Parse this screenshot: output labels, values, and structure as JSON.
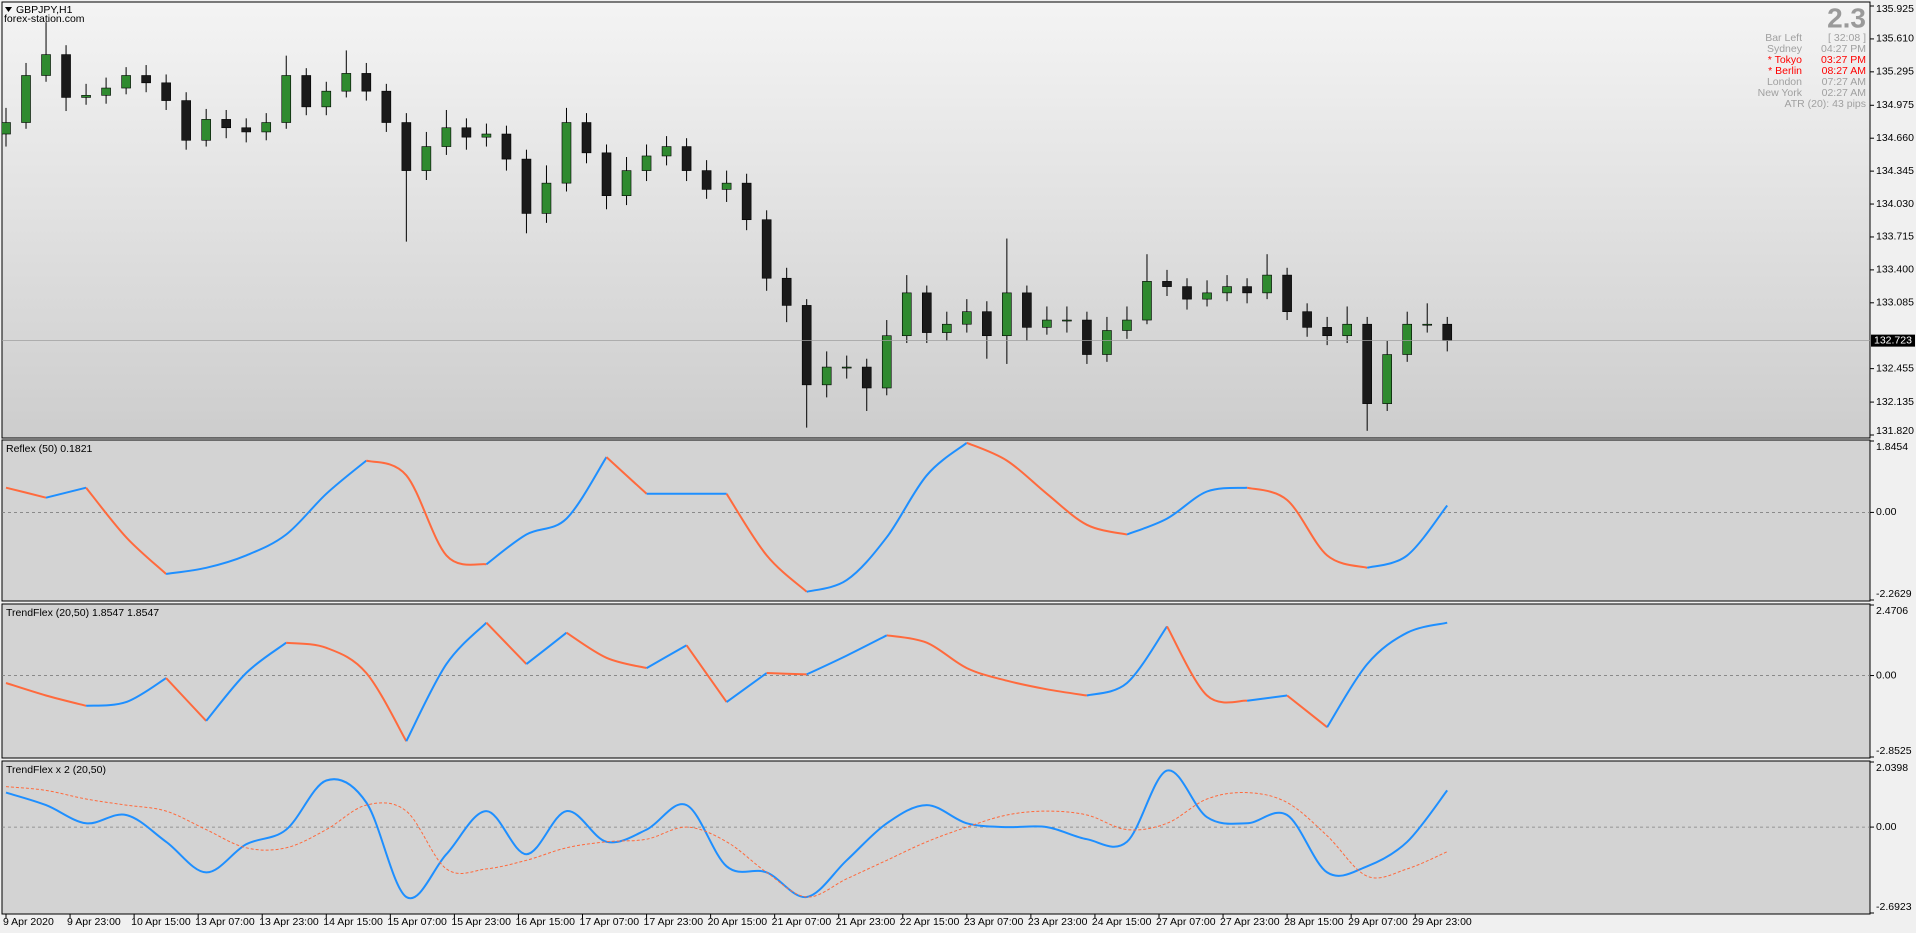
{
  "chart_data": [
    {
      "type": "candlestick",
      "title": "GBPJPY,H1",
      "subtitle": "forex-station.com",
      "x": [
        0,
        5,
        10,
        15,
        20,
        25,
        30,
        35,
        40,
        45,
        50,
        55,
        60,
        65,
        70,
        75,
        80,
        85,
        90,
        95,
        100,
        105,
        110,
        115,
        120,
        125,
        130,
        135,
        140,
        145,
        150,
        155,
        160,
        165,
        170,
        175,
        180,
        185,
        190,
        195,
        200,
        205,
        210,
        215,
        220,
        225,
        230,
        235,
        240,
        245,
        250,
        255,
        260,
        265,
        270,
        275,
        280,
        285,
        290,
        295,
        300,
        305,
        310,
        315,
        320,
        325,
        330,
        335,
        340,
        345,
        350,
        355,
        360
      ],
      "open": [
        134.7,
        134.81,
        135.26,
        135.46,
        135.05,
        135.07,
        135.14,
        135.26,
        135.19,
        135.02,
        134.64,
        134.84,
        134.76,
        134.72,
        134.81,
        135.26,
        134.96,
        135.11,
        135.28,
        135.11,
        134.81,
        134.35,
        134.58,
        134.76,
        134.67,
        134.7,
        134.46,
        133.94,
        134.23,
        134.81,
        134.52,
        134.11,
        134.35,
        134.49,
        134.58,
        134.35,
        134.17,
        134.23,
        133.88,
        133.32,
        133.06,
        132.3,
        132.47,
        132.47,
        132.27,
        132.77,
        133.18,
        132.8,
        132.88,
        133.0,
        132.77,
        133.18,
        132.85,
        132.92,
        132.92,
        132.59,
        132.82,
        132.92,
        133.29,
        133.24,
        133.12,
        133.18,
        133.24,
        133.18,
        133.35,
        133.0,
        132.85,
        132.77,
        132.88,
        132.12,
        132.59,
        132.88,
        132.88
      ],
      "high": [
        134.95,
        135.38,
        135.77,
        135.55,
        135.18,
        135.24,
        135.34,
        135.36,
        135.27,
        135.1,
        134.94,
        134.93,
        134.85,
        134.9,
        135.45,
        135.33,
        135.2,
        135.5,
        135.38,
        135.18,
        134.9,
        134.72,
        134.93,
        134.85,
        134.8,
        134.78,
        134.55,
        134.4,
        134.95,
        134.9,
        134.6,
        134.48,
        134.6,
        134.68,
        134.66,
        134.45,
        134.35,
        134.32,
        133.97,
        133.42,
        133.12,
        132.62,
        132.58,
        132.55,
        132.92,
        133.35,
        133.25,
        133.0,
        133.12,
        133.1,
        133.7,
        133.25,
        133.05,
        133.05,
        133.0,
        132.95,
        133.05,
        133.55,
        133.4,
        133.32,
        133.3,
        133.35,
        133.32,
        133.55,
        133.42,
        133.08,
        132.95,
        133.05,
        132.95,
        132.72,
        133.0,
        133.08,
        132.95
      ],
      "low": [
        134.58,
        134.75,
        135.2,
        134.92,
        134.98,
        134.99,
        135.08,
        135.1,
        134.93,
        134.55,
        134.58,
        134.66,
        134.62,
        134.64,
        134.75,
        134.88,
        134.88,
        135.05,
        135.02,
        134.72,
        133.67,
        134.26,
        134.5,
        134.55,
        134.58,
        134.35,
        133.75,
        133.85,
        134.15,
        134.42,
        133.98,
        134.02,
        134.25,
        134.4,
        134.25,
        134.08,
        134.05,
        133.78,
        133.2,
        132.9,
        131.89,
        132.18,
        132.36,
        132.05,
        132.2,
        132.7,
        132.7,
        132.72,
        132.8,
        132.55,
        132.5,
        132.72,
        132.78,
        132.8,
        132.5,
        132.52,
        132.74,
        132.88,
        133.15,
        133.02,
        133.05,
        133.1,
        133.08,
        133.12,
        132.92,
        132.76,
        132.68,
        132.7,
        131.86,
        132.05,
        132.52,
        132.8,
        132.62
      ],
      "close": [
        134.81,
        135.26,
        135.46,
        135.05,
        135.07,
        135.14,
        135.26,
        135.19,
        135.02,
        134.64,
        134.84,
        134.76,
        134.72,
        134.81,
        135.26,
        134.96,
        135.11,
        135.28,
        135.11,
        134.81,
        134.35,
        134.58,
        134.76,
        134.67,
        134.7,
        134.46,
        133.94,
        134.23,
        134.81,
        134.52,
        134.11,
        134.35,
        134.49,
        134.58,
        134.35,
        134.17,
        134.23,
        133.88,
        133.32,
        133.06,
        132.3,
        132.47,
        132.47,
        132.27,
        132.77,
        133.18,
        132.8,
        132.88,
        133.0,
        132.77,
        133.18,
        132.85,
        132.92,
        132.92,
        132.59,
        132.82,
        132.92,
        133.29,
        133.24,
        133.12,
        133.18,
        133.24,
        133.18,
        133.35,
        133.0,
        132.85,
        132.77,
        132.88,
        132.12,
        132.59,
        132.88,
        132.88,
        132.723
      ],
      "up_color": "#2f8a2f",
      "down_color": "#1a1a1a",
      "wick_color": "#000000",
      "last_price": 132.723,
      "xlim": [
        -1,
        465.6
      ],
      "ylim": [
        131.82,
        135.925
      ],
      "yticks": [
        135.925,
        {
          "value": 135.61,
          "label": "135.610"
        },
        135.295,
        134.975,
        {
          "value": 134.66,
          "label": "134.660"
        },
        134.345,
        {
          "value": 134.03,
          "label": "134.030"
        },
        133.715,
        {
          "value": 133.4,
          "label": "133.400"
        },
        133.085,
        132.455,
        132.135,
        {
          "value": 131.82,
          "label": "131.820"
        }
      ]
    },
    {
      "type": "line",
      "title": "Reflex (50) 0.1821",
      "x": [
        0,
        10,
        20,
        30,
        40,
        50,
        60,
        70,
        80,
        90,
        100,
        110,
        120,
        130,
        140,
        150,
        160,
        170,
        180,
        190,
        200,
        210,
        220,
        230,
        240,
        250,
        260,
        270,
        280,
        290,
        300,
        310,
        320,
        330,
        340,
        350,
        360
      ],
      "series": [
        {
          "up_color": "#1e8fff",
          "down_color": "#ff6a3d",
          "values": [
            0.64,
            0.38,
            0.64,
            -0.64,
            -1.59,
            -1.43,
            -1.11,
            -0.57,
            0.48,
            1.34,
            0.96,
            -1.11,
            -1.34,
            -0.57,
            -0.16,
            1.43,
            0.48,
            0.48,
            0.48,
            -1.11,
            -2.05,
            -1.75,
            -0.64,
            0.96,
            1.8,
            1.34,
            0.48,
            -0.32,
            -0.57,
            -0.16,
            0.54,
            0.64,
            0.32,
            -1.11,
            -1.43,
            -1.11,
            0.18
          ]
        }
      ],
      "xlim": [
        -1,
        465.6
      ],
      "ylim": [
        -2.2629,
        1.8454
      ],
      "yticks": [
        1.8454,
        {
          "value": 0,
          "label": "0.00"
        },
        -2.2629
      ],
      "zero_line": true
    },
    {
      "type": "line",
      "title": "TrendFlex (20,50) 1.8547 1.8547",
      "x": [
        0,
        10,
        20,
        30,
        40,
        50,
        60,
        70,
        80,
        90,
        100,
        110,
        120,
        130,
        140,
        150,
        160,
        170,
        180,
        190,
        200,
        210,
        220,
        230,
        240,
        250,
        260,
        270,
        280,
        290,
        300,
        310,
        320,
        330,
        340,
        350,
        360
      ],
      "series": [
        {
          "up_color": "#1e8fff",
          "down_color": "#ff6a3d",
          "values": [
            -0.26,
            -0.7,
            -1.06,
            -0.93,
            -0.09,
            -1.59,
            0.09,
            1.15,
            0.97,
            0.09,
            -2.3,
            0.4,
            1.85,
            0.4,
            1.5,
            0.62,
            0.26,
            1.06,
            -0.93,
            0.09,
            0.04,
            0.7,
            1.41,
            1.15,
            0.26,
            -0.18,
            -0.48,
            -0.7,
            -0.26,
            1.72,
            -0.7,
            -0.88,
            -0.7,
            -1.81,
            0.4,
            1.5,
            1.85
          ]
        }
      ],
      "xlim": [
        -1,
        465.6
      ],
      "ylim": [
        -2.8525,
        2.4706
      ],
      "yticks": [
        2.4706,
        {
          "value": 0,
          "label": "0.00"
        },
        -2.8525
      ],
      "zero_line": true
    },
    {
      "type": "line",
      "title": "TrendFlex x 2 (20,50)",
      "x": [
        0,
        10,
        20,
        30,
        40,
        50,
        60,
        70,
        80,
        90,
        100,
        110,
        120,
        130,
        140,
        150,
        160,
        170,
        180,
        190,
        200,
        210,
        220,
        230,
        240,
        250,
        260,
        270,
        280,
        290,
        300,
        310,
        320,
        330,
        340,
        350,
        360
      ],
      "series": [
        {
          "color": "#1e8fff",
          "values": [
            1.08,
            0.69,
            0.12,
            0.38,
            -0.46,
            -1.42,
            -0.54,
            -0.08,
            1.46,
            0.77,
            -2.19,
            -0.85,
            0.5,
            -0.85,
            0.5,
            -0.46,
            -0.08,
            0.69,
            -1.23,
            -1.42,
            -2.19,
            -1.04,
            0.12,
            0.69,
            0.12,
            0,
            0,
            -0.38,
            -0.46,
            1.77,
            0.31,
            0.12,
            0.38,
            -1.42,
            -1.23,
            -0.46,
            1.15
          ]
        },
        {
          "color": "#ff6a3d",
          "dashed": true,
          "values": [
            1.27,
            1.15,
            0.88,
            0.69,
            0.5,
            -0.08,
            -0.65,
            -0.65,
            -0.08,
            0.69,
            0.5,
            -1.31,
            -1.31,
            -1.04,
            -0.65,
            -0.46,
            -0.38,
            0,
            -0.46,
            -1.42,
            -2.19,
            -1.62,
            -1.04,
            -0.46,
            0,
            0.38,
            0.5,
            0.38,
            -0.08,
            0.12,
            0.88,
            1.08,
            0.77,
            -0.27,
            -1.54,
            -1.31,
            -0.77
          ]
        }
      ],
      "xlim": [
        -1,
        465.6
      ],
      "ylim": [
        -2.6923,
        2.0398
      ],
      "yticks": [
        2.0398,
        {
          "value": 0,
          "label": "0.00"
        },
        -2.6923
      ],
      "zero_line": true,
      "xticks": [
        {
          "value": 0,
          "label": "9 Apr 2020"
        },
        {
          "value": 16,
          "label": "9 Apr 23:00"
        },
        {
          "value": 32,
          "label": "10 Apr 15:00"
        },
        {
          "value": 48,
          "label": "13 Apr 07:00"
        },
        {
          "value": 64,
          "label": "13 Apr 23:00"
        },
        {
          "value": 80,
          "label": "14 Apr 15:00"
        },
        {
          "value": 96,
          "label": "15 Apr 07:00"
        },
        {
          "value": 112,
          "label": "15 Apr 23:00"
        },
        {
          "value": 128,
          "label": "16 Apr 15:00"
        },
        {
          "value": 144,
          "label": "17 Apr 07:00"
        },
        {
          "value": 160,
          "label": "17 Apr 23:00"
        },
        {
          "value": 176,
          "label": "20 Apr 15:00"
        },
        {
          "value": 192,
          "label": "21 Apr 07:00"
        },
        {
          "value": 208,
          "label": "21 Apr 23:00"
        },
        {
          "value": 224,
          "label": "22 Apr 15:00"
        },
        {
          "value": 240,
          "label": "23 Apr 07:00"
        },
        {
          "value": 256,
          "label": "23 Apr 23:00"
        },
        {
          "value": 272,
          "label": "24 Apr 15:00"
        },
        {
          "value": 288,
          "label": "27 Apr 07:00"
        },
        {
          "value": 304,
          "label": "27 Apr 23:00"
        },
        {
          "value": 320,
          "label": "28 Apr 15:00"
        },
        {
          "value": 336,
          "label": "29 Apr 07:00"
        },
        {
          "value": 352,
          "label": "29 Apr 23:00"
        }
      ]
    }
  ],
  "info": {
    "spread": "2.3",
    "rows": [
      {
        "label": "Bar Left",
        "value": "[ 32:08 ]",
        "color": "#a0a0a0"
      },
      {
        "label": "Sydney",
        "value": "04:27 PM",
        "color": "#a0a0a0"
      },
      {
        "label": "* Tokyo",
        "value": "03:27 PM",
        "color": "#ff0000"
      },
      {
        "label": "* Berlin",
        "value": "08:27 AM",
        "color": "#ff0000"
      },
      {
        "label": "London",
        "value": "07:27 AM",
        "color": "#a0a0a0"
      },
      {
        "label": "New York",
        "value": "02:27 AM",
        "color": "#a0a0a0"
      }
    ],
    "atr": "ATR (20): 43 pips"
  }
}
